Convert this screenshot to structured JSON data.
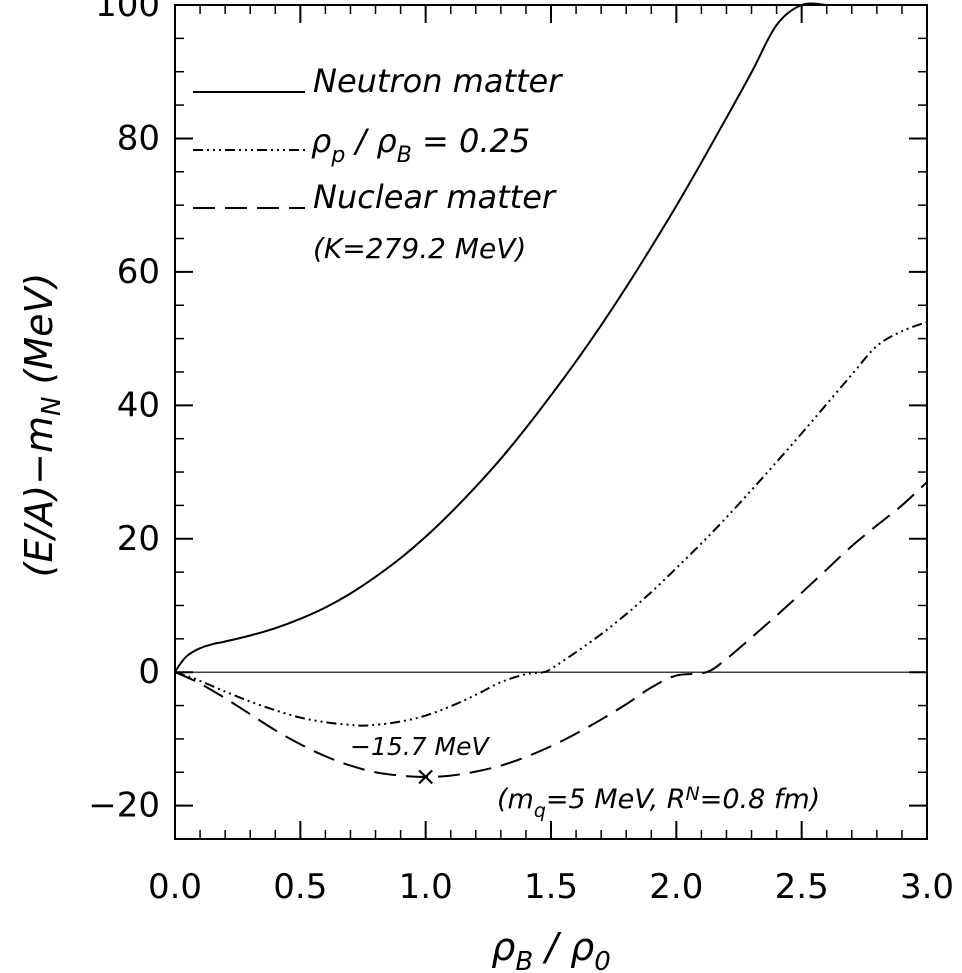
{
  "chart_data": {
    "type": "line",
    "title": "",
    "xlabel": {
      "main": "ρ",
      "sub": "B",
      "sep": " / ",
      "main2": "ρ",
      "sub2": "0"
    },
    "ylabel": {
      "pre": "(E/A)−m",
      "sub": "N",
      "post": " (MeV)"
    },
    "xlim": [
      0,
      3
    ],
    "ylim": [
      -25,
      100
    ],
    "xticks": [
      {
        "value": 0.0,
        "label": "0.0"
      },
      {
        "value": 0.5,
        "label": "0.5"
      },
      {
        "value": 1.0,
        "label": "1.0"
      },
      {
        "value": 1.5,
        "label": "1.5"
      },
      {
        "value": 2.0,
        "label": "2.0"
      },
      {
        "value": 2.5,
        "label": "2.5"
      },
      {
        "value": 3.0,
        "label": "3.0"
      }
    ],
    "yticks": [
      {
        "value": -20,
        "label": "−20"
      },
      {
        "value": 0,
        "label": "0"
      },
      {
        "value": 20,
        "label": "20"
      },
      {
        "value": 40,
        "label": "40"
      },
      {
        "value": 60,
        "label": "60"
      },
      {
        "value": 80,
        "label": "80"
      },
      {
        "value": 100,
        "label": "100"
      }
    ],
    "x_minor_step": 0.1,
    "y_minor_step": 5,
    "zero_line": true,
    "grid": false,
    "legend_position": "top-left",
    "legend": [
      {
        "series": "neutron",
        "label": "Neutron matter",
        "style": "solid"
      },
      {
        "series": "mixed",
        "label_main": "ρ",
        "label_sub": "p",
        "label_sep": " / ",
        "label_main2": "ρ",
        "label_sub2": "B",
        "label_rest": " = 0.25",
        "style": "dashdotdotdot"
      },
      {
        "series": "nuclear",
        "label": "Nuclear matter",
        "label2": "(K=279.2 MeV)",
        "style": "dashed"
      }
    ],
    "series": [
      {
        "id": "neutron",
        "style": "solid",
        "x": [
          0,
          0.02,
          0.05,
          0.1,
          0.15,
          0.2,
          0.3,
          0.4,
          0.5,
          0.6,
          0.7,
          0.8,
          0.9,
          1.0,
          1.1,
          1.2,
          1.3,
          1.4,
          1.5,
          1.6,
          1.7,
          1.8,
          1.9,
          2.0,
          2.1,
          2.2,
          2.3,
          2.4,
          2.5,
          2.6
        ],
        "y": [
          0,
          1.2,
          2.5,
          3.6,
          4.2,
          4.6,
          5.5,
          6.6,
          8.0,
          9.7,
          11.8,
          14.3,
          17.1,
          20.3,
          23.9,
          27.8,
          32.0,
          36.6,
          41.5,
          46.6,
          52.0,
          57.7,
          63.7,
          69.9,
          76.4,
          83.1,
          89.9,
          97.0,
          104.2,
          100.0
        ]
      },
      {
        "id": "mixed",
        "style": "dashdotdotdot",
        "x": [
          0,
          0.05,
          0.1,
          0.2,
          0.3,
          0.4,
          0.5,
          0.6,
          0.7,
          0.75,
          0.8,
          0.9,
          1.0,
          1.1,
          1.2,
          1.3,
          1.4,
          1.47,
          1.5,
          1.6,
          1.7,
          1.8,
          1.9,
          2.0,
          2.1,
          2.2,
          2.3,
          2.4,
          2.5,
          2.6,
          2.7,
          2.8,
          2.9,
          3.0
        ],
        "y": [
          0,
          -0.6,
          -1.3,
          -2.9,
          -4.4,
          -5.7,
          -6.8,
          -7.5,
          -7.9,
          -8.0,
          -7.9,
          -7.4,
          -6.5,
          -5.1,
          -3.4,
          -1.5,
          -0.3,
          0,
          0.5,
          3.0,
          5.7,
          8.7,
          12.0,
          15.6,
          19.3,
          23.2,
          27.3,
          31.5,
          35.8,
          40.2,
          44.6,
          48.9,
          51.1,
          52.5
        ]
      },
      {
        "id": "nuclear",
        "style": "dashed",
        "x": [
          0,
          0.05,
          0.1,
          0.2,
          0.3,
          0.4,
          0.5,
          0.6,
          0.7,
          0.8,
          0.9,
          1.0,
          1.1,
          1.2,
          1.3,
          1.4,
          1.5,
          1.6,
          1.7,
          1.8,
          1.9,
          2.0,
          2.12,
          2.2,
          2.3,
          2.4,
          2.5,
          2.6,
          2.7,
          2.8,
          2.9,
          3.0
        ],
        "y": [
          0,
          -0.8,
          -1.7,
          -3.9,
          -6.3,
          -8.7,
          -10.8,
          -12.6,
          -14.0,
          -15.0,
          -15.5,
          -15.7,
          -15.5,
          -14.9,
          -14.0,
          -12.7,
          -11.1,
          -9.2,
          -7.1,
          -4.8,
          -2.3,
          -0.5,
          0,
          2.0,
          5.2,
          8.5,
          11.9,
          15.4,
          18.9,
          22.0,
          25.0,
          28.5
        ]
      }
    ],
    "marker": {
      "x": 1.0,
      "y": -15.7,
      "symbol": "×",
      "label": "−15.7 MeV"
    },
    "annotations": [
      {
        "id": "params",
        "pre": "(m",
        "sub1": "q",
        "mid": "=5 MeV, R",
        "sub2": "N",
        "post": "=0.8 fm)"
      }
    ]
  }
}
